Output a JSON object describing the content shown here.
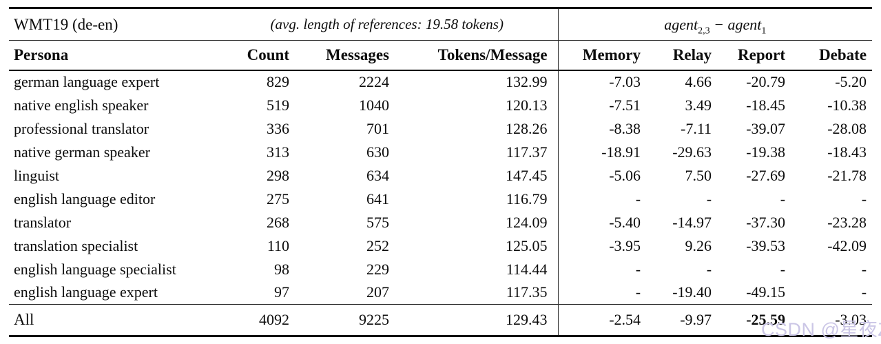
{
  "header": {
    "dataset": "WMT19 (de-en)",
    "note": "(avg. length of references: 19.58 tokens)",
    "agent_formula": {
      "term1": "agent",
      "sub1": "2,3",
      "operator": " − ",
      "term2": "agent",
      "sub2": "1"
    },
    "columns": [
      "Persona",
      "Count",
      "Messages",
      "Tokens/Message",
      "Memory",
      "Relay",
      "Report",
      "Debate"
    ]
  },
  "rows": [
    [
      "german language expert",
      "829",
      "2224",
      "132.99",
      "-7.03",
      "4.66",
      "-20.79",
      "-5.20"
    ],
    [
      "native english speaker",
      "519",
      "1040",
      "120.13",
      "-7.51",
      "3.49",
      "-18.45",
      "-10.38"
    ],
    [
      "professional translator",
      "336",
      "701",
      "128.26",
      "-8.38",
      "-7.11",
      "-39.07",
      "-28.08"
    ],
    [
      "native german speaker",
      "313",
      "630",
      "117.37",
      "-18.91",
      "-29.63",
      "-19.38",
      "-18.43"
    ],
    [
      "linguist",
      "298",
      "634",
      "147.45",
      "-5.06",
      "7.50",
      "-27.69",
      "-21.78"
    ],
    [
      "english language editor",
      "275",
      "641",
      "116.79",
      "-",
      "-",
      "-",
      "-"
    ],
    [
      "translator",
      "268",
      "575",
      "124.09",
      "-5.40",
      "-14.97",
      "-37.30",
      "-23.28"
    ],
    [
      "translation specialist",
      "110",
      "252",
      "125.05",
      "-3.95",
      "9.26",
      "-39.53",
      "-42.09"
    ],
    [
      "english language specialist",
      "98",
      "229",
      "114.44",
      "-",
      "-",
      "-",
      "-"
    ],
    [
      "english language expert",
      "97",
      "207",
      "117.35",
      "-",
      "-19.40",
      "-49.15",
      "-"
    ]
  ],
  "total_row": [
    "All",
    "4092",
    "9225",
    "129.43",
    "-2.54",
    "-9.97",
    "-25.59",
    "-3.03"
  ],
  "watermark": {
    "text": "CSDN @星夜Zn",
    "color": "#cbc6e6"
  }
}
